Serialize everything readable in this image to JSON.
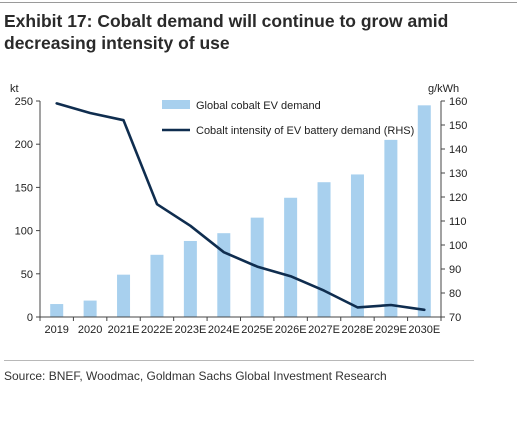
{
  "title": "Exhibit 17: Cobalt demand will continue to grow amid decreasing intensity of use",
  "source": "Source: BNEF, Woodmac, Goldman Sachs Global Investment Research",
  "chart_data": {
    "type": "bar",
    "categories": [
      "2019",
      "2020",
      "2021E",
      "2022E",
      "2023E",
      "2024E",
      "2025E",
      "2026E",
      "2027E",
      "2028E",
      "2029E",
      "2030E"
    ],
    "series": [
      {
        "name": "Global cobalt EV demand",
        "type": "bar",
        "axis": "left",
        "color": "#a8d0ee",
        "values": [
          15,
          19,
          49,
          72,
          88,
          97,
          115,
          138,
          156,
          165,
          205,
          245
        ]
      },
      {
        "name": "Cobalt intensity of EV battery demand (RHS)",
        "type": "line",
        "axis": "right",
        "color": "#0f2d4f",
        "values": [
          159,
          155,
          152,
          117,
          108,
          97,
          91,
          87,
          81,
          74,
          75,
          73
        ]
      }
    ],
    "ylabel_left": "kt",
    "ylabel_right": "g/kWh",
    "ylim_left": [
      0,
      250
    ],
    "yticks_left": [
      0,
      50,
      100,
      150,
      200,
      250
    ],
    "ylim_right": [
      70,
      160
    ],
    "yticks_right": [
      70,
      80,
      90,
      100,
      110,
      120,
      130,
      140,
      150,
      160
    ],
    "grid": false,
    "legend_position": "top-center"
  }
}
